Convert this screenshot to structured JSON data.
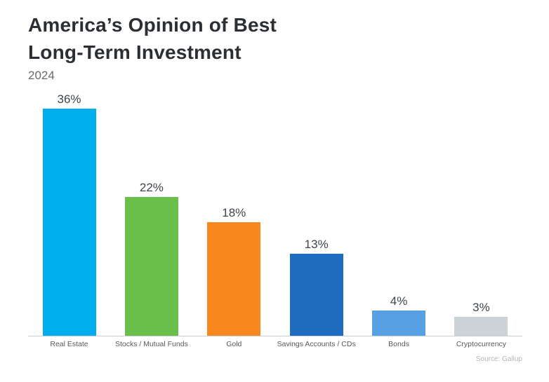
{
  "header": {
    "title_line1": "America’s Opinion of Best",
    "title_line2": "Long-Term Investment",
    "subtitle": "2024"
  },
  "footer": {
    "source": "Source: Gallup"
  },
  "chart_data": {
    "type": "bar",
    "title": "America’s Opinion of Best Long-Term Investment",
    "subtitle": "2024",
    "categories": [
      "Real Estate",
      "Stocks / Mutual Funds",
      "Gold",
      "Savings Accounts / CDs",
      "Bonds",
      "Cryptocurrency"
    ],
    "values": [
      36,
      22,
      18,
      13,
      4,
      3
    ],
    "value_labels": [
      "36%",
      "22%",
      "18%",
      "13%",
      "4%",
      "3%"
    ],
    "colors": [
      "#00aeef",
      "#6abf4b",
      "#f6881f",
      "#1d6cc0",
      "#57a0e3",
      "#ccd3d6"
    ],
    "xlabel": "",
    "ylabel": "",
    "ylim": [
      0,
      40
    ],
    "grid": false,
    "legend": "none",
    "source": "Source: Gallup"
  }
}
